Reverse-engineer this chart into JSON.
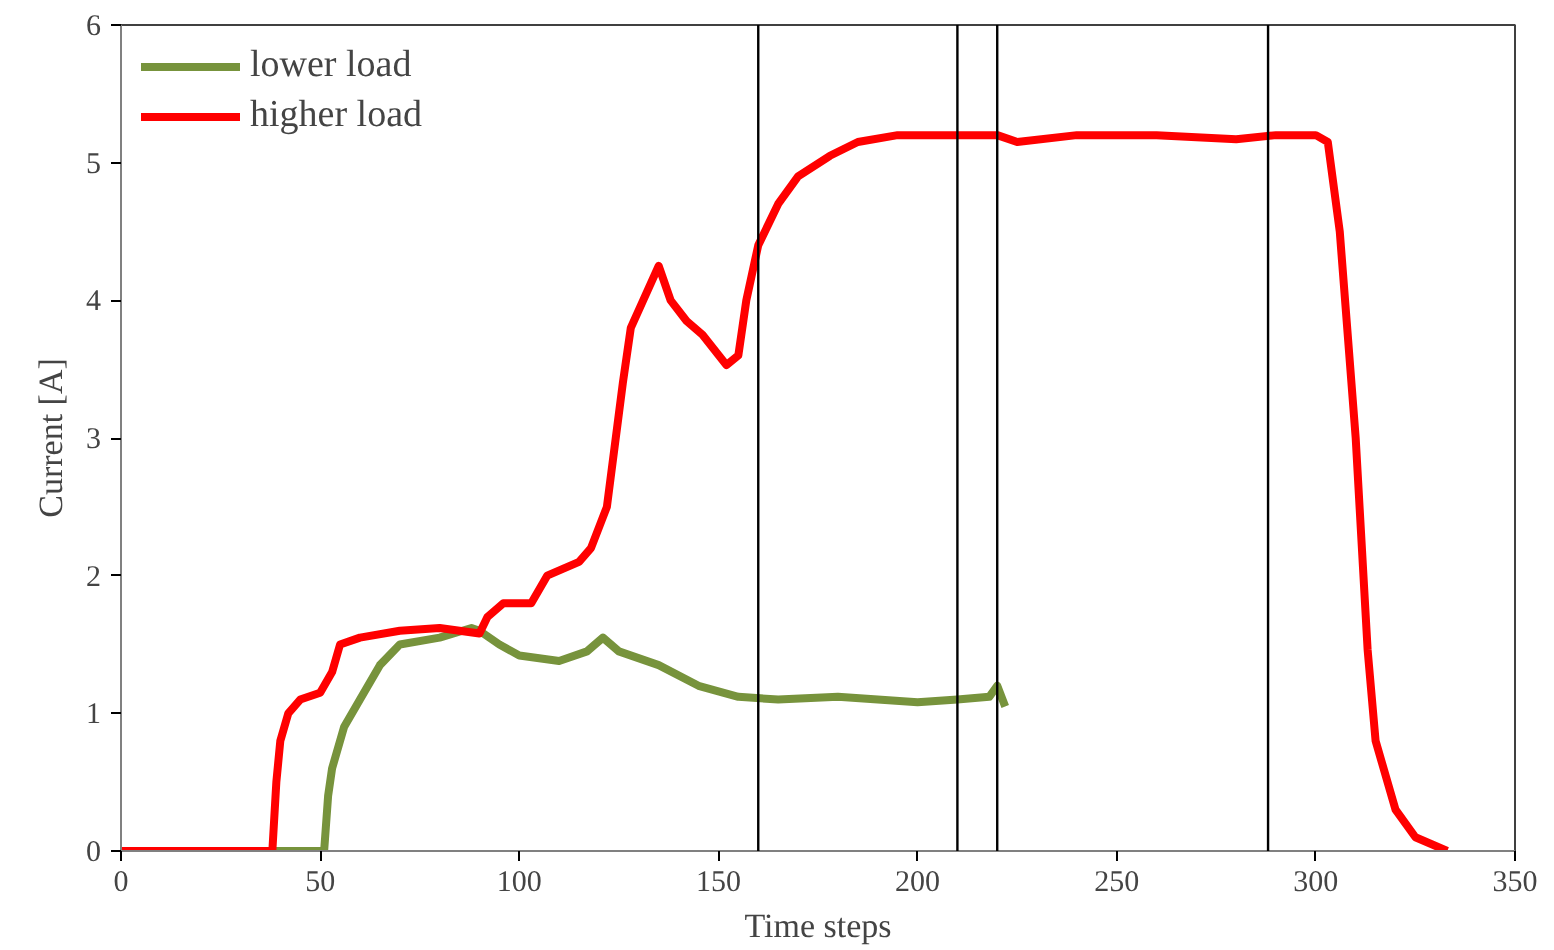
{
  "chart_data": {
    "type": "line",
    "xlabel": "Time steps",
    "ylabel": "Current [A]",
    "xlim": [
      0,
      350
    ],
    "ylim": [
      0,
      6
    ],
    "xticks": [
      0,
      50,
      100,
      150,
      200,
      250,
      300,
      350
    ],
    "yticks": [
      0,
      1,
      2,
      3,
      4,
      5,
      6
    ],
    "grid": false,
    "legend": "top left",
    "series": [
      {
        "name": "lower load",
        "color": "#77933c",
        "x": [
          0,
          51,
          52,
          53,
          56,
          60,
          65,
          70,
          80,
          88,
          90,
          95,
          100,
          110,
          117,
          121,
          125,
          135,
          145,
          155,
          165,
          180,
          200,
          210,
          218,
          220,
          222
        ],
        "values": [
          0,
          0,
          0.4,
          0.6,
          0.9,
          1.1,
          1.35,
          1.5,
          1.55,
          1.62,
          1.6,
          1.5,
          1.42,
          1.38,
          1.45,
          1.55,
          1.45,
          1.35,
          1.2,
          1.12,
          1.1,
          1.12,
          1.08,
          1.1,
          1.12,
          1.2,
          1.05
        ]
      },
      {
        "name": "higher load",
        "color": "#ff0000",
        "x": [
          0,
          38,
          39,
          40,
          42,
          45,
          50,
          53,
          55,
          60,
          70,
          80,
          85,
          90,
          92,
          96,
          103,
          107,
          115,
          118,
          122,
          126,
          128,
          135,
          138,
          142,
          146,
          152,
          155,
          157,
          160,
          165,
          170,
          178,
          185,
          195,
          210,
          220,
          225,
          240,
          260,
          280,
          290,
          300,
          303,
          306,
          310,
          313,
          315,
          320,
          325,
          333
        ],
        "values": [
          0,
          0,
          0.5,
          0.8,
          1.0,
          1.1,
          1.15,
          1.3,
          1.5,
          1.55,
          1.6,
          1.62,
          1.6,
          1.58,
          1.7,
          1.8,
          1.8,
          2.0,
          2.1,
          2.2,
          2.5,
          3.4,
          3.8,
          4.25,
          4.0,
          3.85,
          3.75,
          3.53,
          3.6,
          4.0,
          4.4,
          4.7,
          4.9,
          5.05,
          5.15,
          5.2,
          5.2,
          5.2,
          5.15,
          5.2,
          5.2,
          5.17,
          5.2,
          5.2,
          5.15,
          4.5,
          3.0,
          1.46,
          0.8,
          0.3,
          0.1,
          0
        ]
      }
    ],
    "ref_lines": [
      {
        "axis": "x",
        "value": 160,
        "color": "#000000"
      },
      {
        "axis": "x",
        "value": 210,
        "color": "#000000"
      },
      {
        "axis": "x",
        "value": 220,
        "color": "#000000"
      },
      {
        "axis": "x",
        "value": 288,
        "color": "#000000"
      }
    ]
  }
}
